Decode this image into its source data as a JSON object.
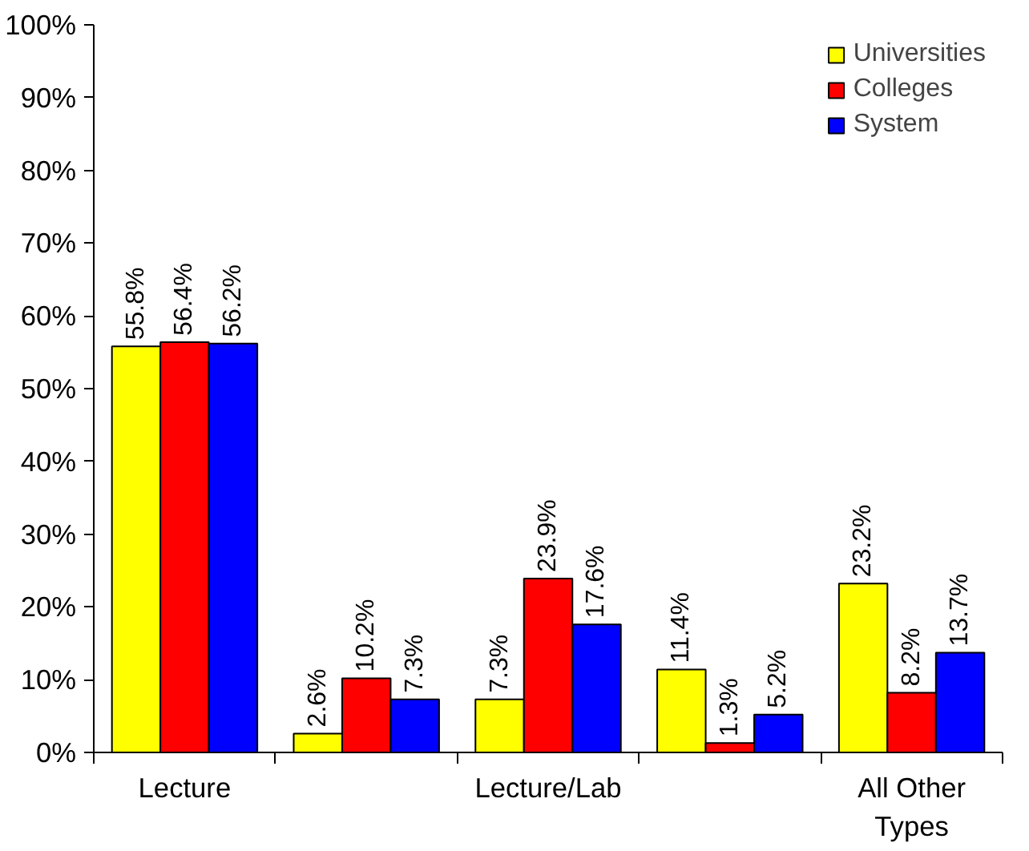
{
  "chart_data": {
    "type": "bar",
    "categories": [
      "Lecture",
      null,
      "Lecture/Lab",
      null,
      "All Other Types"
    ],
    "series": [
      {
        "name": "Universities",
        "color": "#ffff00",
        "values": [
          55.8,
          2.6,
          7.3,
          11.4,
          23.2
        ],
        "value_labels": [
          "55.8%",
          "2.6%",
          "7.3%",
          "11.4%",
          "23.2%"
        ]
      },
      {
        "name": "Colleges",
        "color": "#ff0000",
        "values": [
          56.4,
          10.2,
          23.9,
          1.3,
          8.2
        ],
        "value_labels": [
          "56.4%",
          "10.2%",
          "23.9%",
          "1.3%",
          "8.2%"
        ]
      },
      {
        "name": "System",
        "color": "#0000ff",
        "values": [
          56.2,
          7.3,
          17.6,
          5.2,
          13.7
        ],
        "value_labels": [
          "56.2%",
          "7.3%",
          "17.6%",
          "5.2%",
          "13.7%"
        ]
      }
    ],
    "ylim": [
      0,
      100
    ],
    "yticks": [
      {
        "value": 0,
        "label": "0%"
      },
      {
        "value": 10,
        "label": "10%"
      },
      {
        "value": 20,
        "label": "20%"
      },
      {
        "value": 30,
        "label": "30%"
      },
      {
        "value": 40,
        "label": "40%"
      },
      {
        "value": 50,
        "label": "50%"
      },
      {
        "value": 60,
        "label": "60%"
      },
      {
        "value": 70,
        "label": "70%"
      },
      {
        "value": 80,
        "label": "80%"
      },
      {
        "value": 90,
        "label": "90%"
      },
      {
        "value": 100,
        "label": "100%"
      }
    ],
    "grid": false,
    "legend": "top right"
  }
}
